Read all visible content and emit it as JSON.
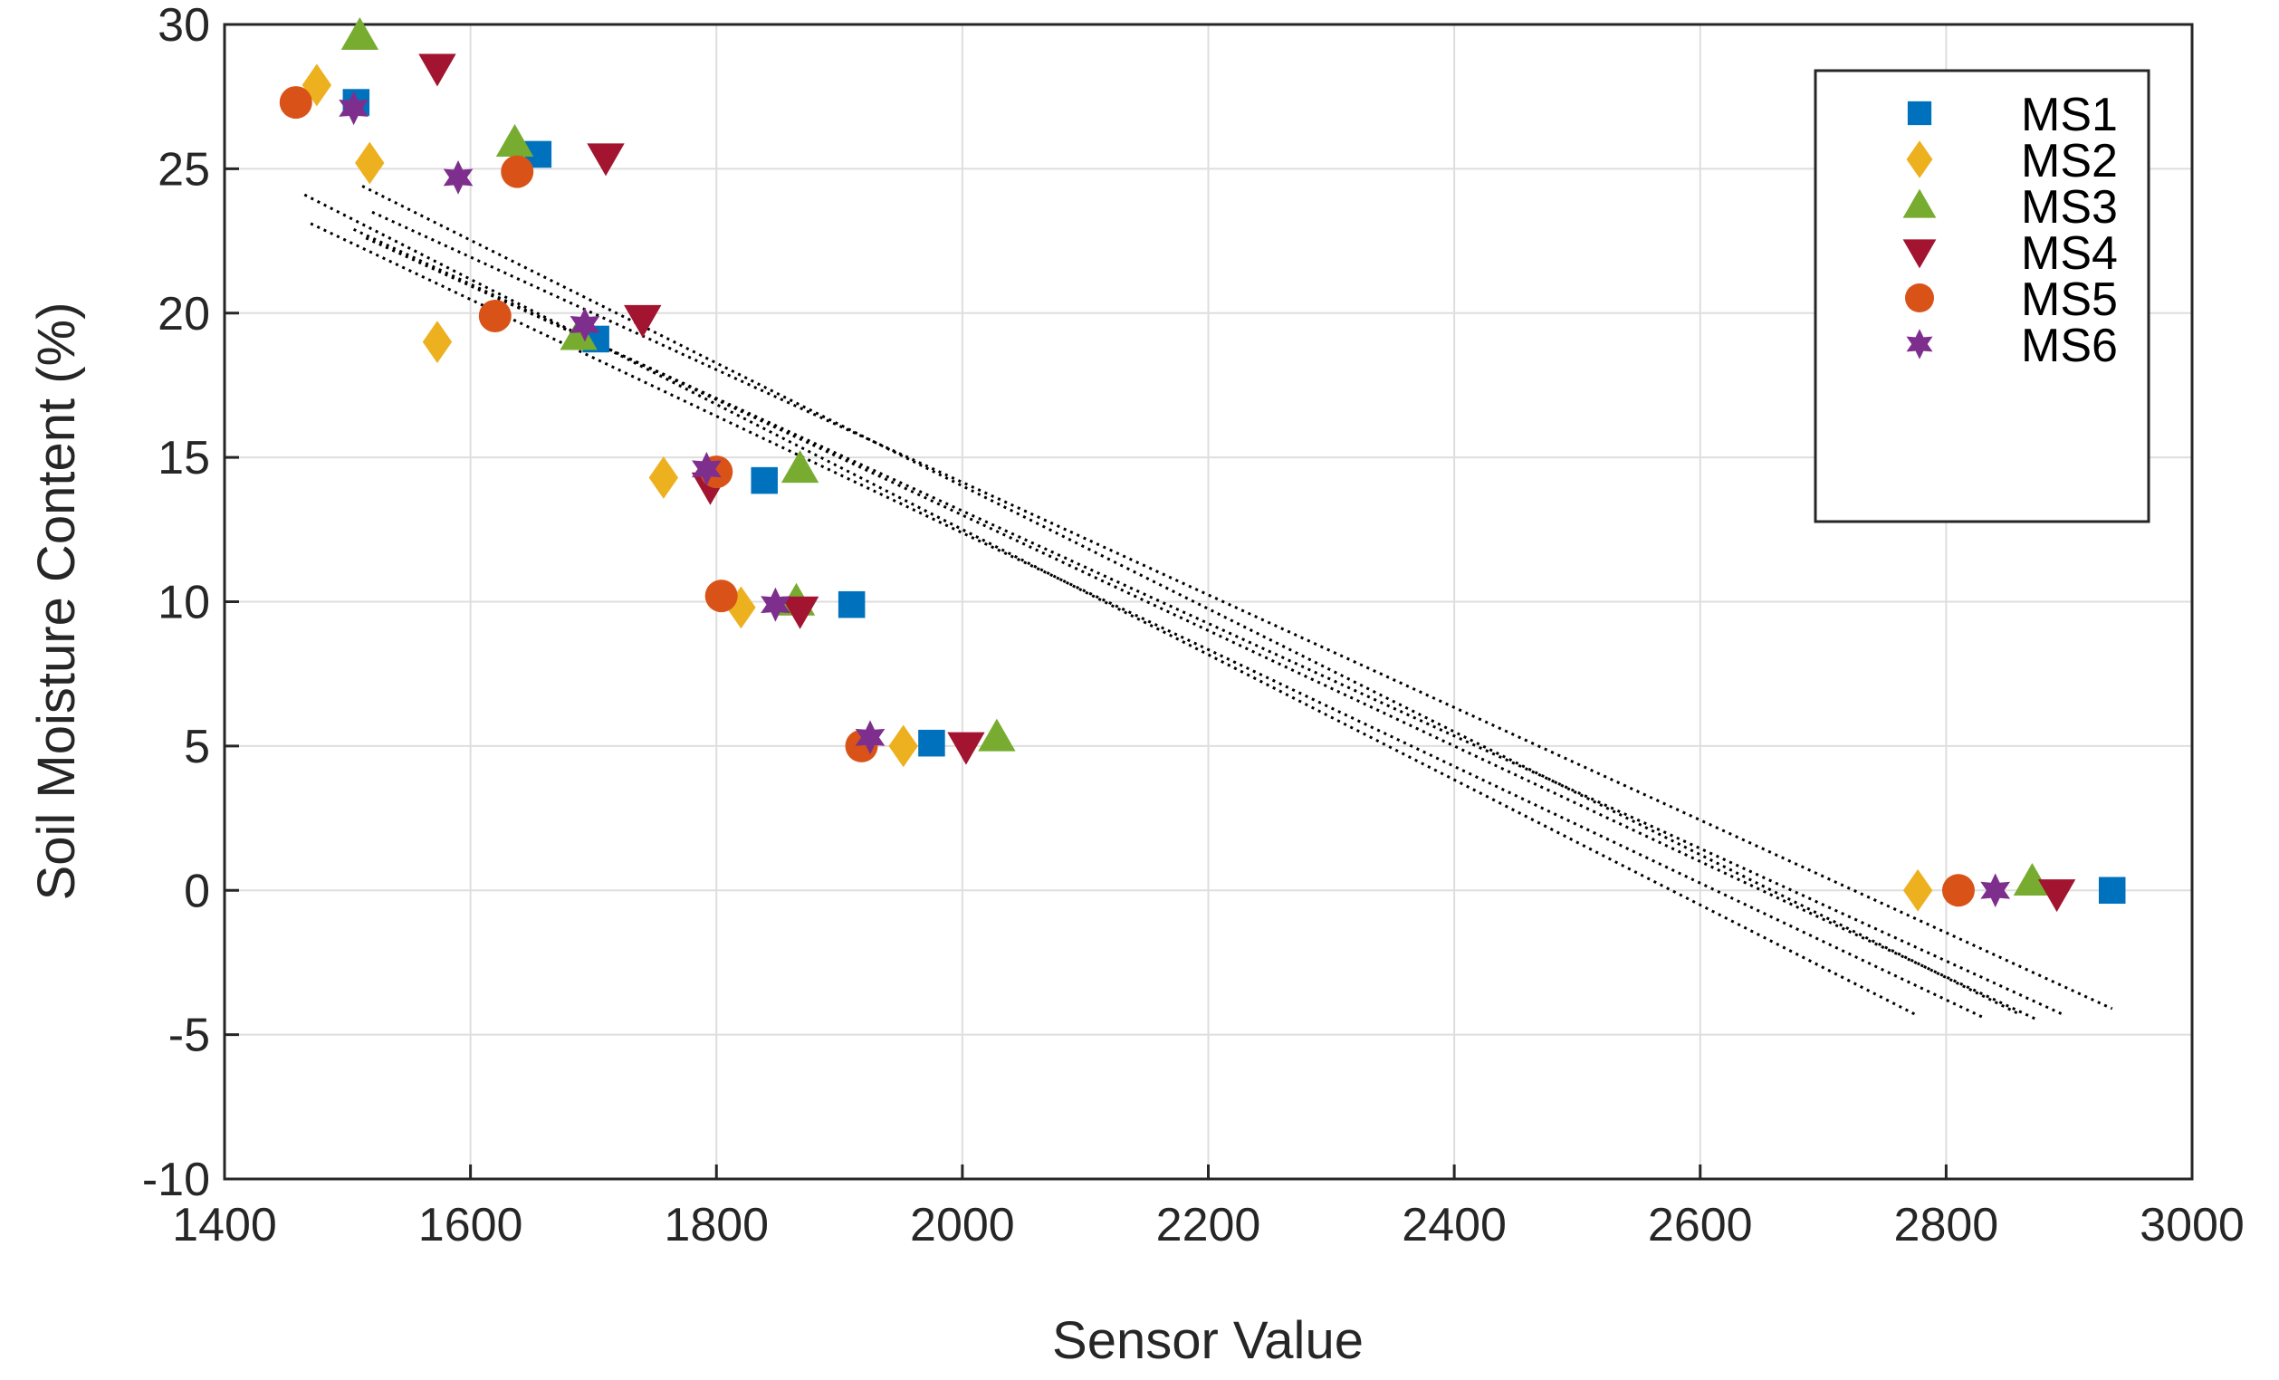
{
  "chart_data": {
    "type": "scatter",
    "title": "",
    "xlabel": "Sensor Value",
    "ylabel": "Soil Moisture Content (%)",
    "xlim": [
      1400,
      3000
    ],
    "ylim": [
      -10,
      30
    ],
    "xticks": [
      1400,
      1600,
      1800,
      2000,
      2200,
      2400,
      2600,
      2800,
      3000
    ],
    "yticks": [
      -10,
      -5,
      0,
      5,
      10,
      15,
      20,
      25,
      30
    ],
    "grid": true,
    "legend_position": "top-right",
    "series": [
      {
        "name": "MS1",
        "marker": "square",
        "color": "#0072BD",
        "points": [
          [
            1507,
            27.3
          ],
          [
            1655,
            25.5
          ],
          [
            1702,
            19.1
          ],
          [
            1839,
            14.2
          ],
          [
            1910,
            9.9
          ],
          [
            1975,
            5.1
          ],
          [
            2935,
            0
          ]
        ]
      },
      {
        "name": "MS2",
        "marker": "diamond",
        "color": "#EDB120",
        "points": [
          [
            1475,
            27.9
          ],
          [
            1518,
            25.2
          ],
          [
            1573,
            19.0
          ],
          [
            1757,
            14.3
          ],
          [
            1820,
            9.8
          ],
          [
            1952,
            5.0
          ],
          [
            2777,
            0
          ]
        ]
      },
      {
        "name": "MS3",
        "marker": "triangle-up",
        "color": "#77AC30",
        "points": [
          [
            1510,
            29.6
          ],
          [
            1636,
            25.9
          ],
          [
            1688,
            19.2
          ],
          [
            1868,
            14.6
          ],
          [
            1865,
            10.0
          ],
          [
            2028,
            5.3
          ],
          [
            2870,
            0.3
          ]
        ]
      },
      {
        "name": "MS4",
        "marker": "triangle-down",
        "color": "#A2142F",
        "points": [
          [
            1573,
            28.5
          ],
          [
            1710,
            25.4
          ],
          [
            1740,
            19.8
          ],
          [
            1795,
            14.0
          ],
          [
            1868,
            9.7
          ],
          [
            2003,
            5.0
          ],
          [
            2890,
            -0.1
          ]
        ]
      },
      {
        "name": "MS5",
        "marker": "circle",
        "color": "#D95319",
        "points": [
          [
            1458,
            27.3
          ],
          [
            1638,
            24.9
          ],
          [
            1620,
            19.9
          ],
          [
            1800,
            14.5
          ],
          [
            1804,
            10.2
          ],
          [
            1918,
            5.0
          ],
          [
            2810,
            0
          ]
        ]
      },
      {
        "name": "MS6",
        "marker": "hexagram",
        "color": "#7E2F8E",
        "points": [
          [
            1505,
            27.1
          ],
          [
            1590,
            24.7
          ],
          [
            1693,
            19.6
          ],
          [
            1792,
            14.6
          ],
          [
            1848,
            9.9
          ],
          [
            1925,
            5.3
          ],
          [
            2840,
            0
          ]
        ]
      }
    ],
    "fit_lines": [
      {
        "name": "MS1 fit",
        "x": [
          1512,
          2860
        ],
        "y": [
          24.4,
          -4.3
        ]
      },
      {
        "name": "MS2 fit",
        "x": [
          1465,
          2775
        ],
        "y": [
          24.1,
          -4.3
        ]
      },
      {
        "name": "MS3 fit",
        "x": [
          1520,
          2935
        ],
        "y": [
          23.5,
          -4.1
        ]
      },
      {
        "name": "MS4 fit",
        "x": [
          1515,
          2895
        ],
        "y": [
          22.6,
          -4.3
        ]
      },
      {
        "name": "MS5 fit",
        "x": [
          1470,
          2830
        ],
        "y": [
          23.1,
          -4.4
        ]
      },
      {
        "name": "MS6 fit",
        "x": [
          1505,
          2875
        ],
        "y": [
          22.9,
          -4.5
        ]
      }
    ]
  }
}
